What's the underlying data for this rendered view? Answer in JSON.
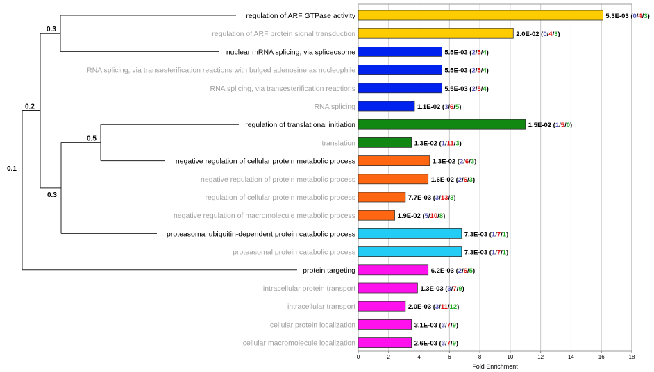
{
  "chart_data": {
    "type": "bar",
    "orientation": "horizontal",
    "xlabel": "Fold Enrichment",
    "xlim": [
      0,
      18
    ],
    "xticks": [
      0,
      2,
      4,
      6,
      8,
      10,
      12,
      14,
      16,
      18
    ],
    "grid": true,
    "dendrogram": {
      "labels": [
        "0.3",
        "0.2",
        "0.5",
        "0.3",
        "0.1"
      ]
    },
    "bars": [
      {
        "term": "regulation of ARF GTPase activity",
        "value": 16.1,
        "color": "#FFCC00",
        "main": true,
        "pvalue": "5.3E-03",
        "counts": [
          "0",
          "4",
          "3"
        ]
      },
      {
        "term": "regulation of ARF protein signal transduction",
        "value": 10.2,
        "color": "#FFCC00",
        "main": false,
        "pvalue": "2.0E-02",
        "counts": [
          "0",
          "4",
          "3"
        ]
      },
      {
        "term": "nuclear mRNA splicing, via spliceosome",
        "value": 5.5,
        "color": "#0022EE",
        "main": true,
        "pvalue": "5.5E-03",
        "counts": [
          "2",
          "5",
          "4"
        ]
      },
      {
        "term": "RNA splicing, via transesterification reactions with bulged adenosine as nucleophile",
        "value": 5.5,
        "color": "#0022EE",
        "main": false,
        "pvalue": "5.5E-03",
        "counts": [
          "2",
          "5",
          "4"
        ]
      },
      {
        "term": "RNA splicing, via transesterification reactions",
        "value": 5.5,
        "color": "#0022EE",
        "main": false,
        "pvalue": "5.5E-03",
        "counts": [
          "2",
          "5",
          "4"
        ]
      },
      {
        "term": "RNA splicing",
        "value": 3.7,
        "color": "#0022EE",
        "main": false,
        "pvalue": "1.1E-02",
        "counts": [
          "3",
          "6",
          "5"
        ]
      },
      {
        "term": "regulation of translational initiation",
        "value": 11.0,
        "color": "#118811",
        "main": true,
        "pvalue": "1.5E-02",
        "counts": [
          "1",
          "5",
          "0"
        ]
      },
      {
        "term": "translation",
        "value": 3.5,
        "color": "#118811",
        "main": false,
        "pvalue": "1.3E-02",
        "counts": [
          "1",
          "11",
          "3"
        ]
      },
      {
        "term": "negative regulation of cellular protein metabolic process",
        "value": 4.7,
        "color": "#FF6611",
        "main": true,
        "pvalue": "1.3E-02",
        "counts": [
          "2",
          "6",
          "3"
        ]
      },
      {
        "term": "negative regulation of protein metabolic process",
        "value": 4.6,
        "color": "#FF6611",
        "main": false,
        "pvalue": "1.6E-02",
        "counts": [
          "2",
          "6",
          "3"
        ]
      },
      {
        "term": "regulation of cellular protein metabolic process",
        "value": 3.1,
        "color": "#FF6611",
        "main": false,
        "pvalue": "7.7E-03",
        "counts": [
          "3",
          "13",
          "3"
        ]
      },
      {
        "term": "negative regulation of macromolecule metabolic process",
        "value": 2.4,
        "color": "#FF6611",
        "main": false,
        "pvalue": "1.9E-02",
        "counts": [
          "5",
          "10",
          "8"
        ]
      },
      {
        "term": "proteasomal ubiquitin-dependent protein catabolic process",
        "value": 6.8,
        "color": "#22CCF5",
        "main": true,
        "pvalue": "7.3E-03",
        "counts": [
          "1",
          "7",
          "1"
        ]
      },
      {
        "term": "proteasomal protein catabolic process",
        "value": 6.8,
        "color": "#22CCF5",
        "main": false,
        "pvalue": "7.3E-03",
        "counts": [
          "1",
          "7",
          "1"
        ]
      },
      {
        "term": "protein targeting",
        "value": 4.6,
        "color": "#FF11EE",
        "main": true,
        "pvalue": "6.2E-03",
        "counts": [
          "2",
          "6",
          "5"
        ]
      },
      {
        "term": "intracellular protein transport",
        "value": 3.9,
        "color": "#FF11EE",
        "main": false,
        "pvalue": "1.3E-03",
        "counts": [
          "3",
          "7",
          "9"
        ]
      },
      {
        "term": "intracellular transport",
        "value": 3.1,
        "color": "#FF11EE",
        "main": false,
        "pvalue": "2.0E-03",
        "counts": [
          "3",
          "11",
          "12"
        ]
      },
      {
        "term": "cellular protein localization",
        "value": 3.5,
        "color": "#FF11EE",
        "main": false,
        "pvalue": "3.1E-03",
        "counts": [
          "3",
          "7",
          "9"
        ]
      },
      {
        "term": "cellular macromolecule localization",
        "value": 3.5,
        "color": "#FF11EE",
        "main": false,
        "pvalue": "2.6E-03",
        "counts": [
          "3",
          "7",
          "9"
        ]
      }
    ],
    "count_colors": [
      "#5555BB",
      "#DD1111",
      "#22AA22"
    ]
  }
}
